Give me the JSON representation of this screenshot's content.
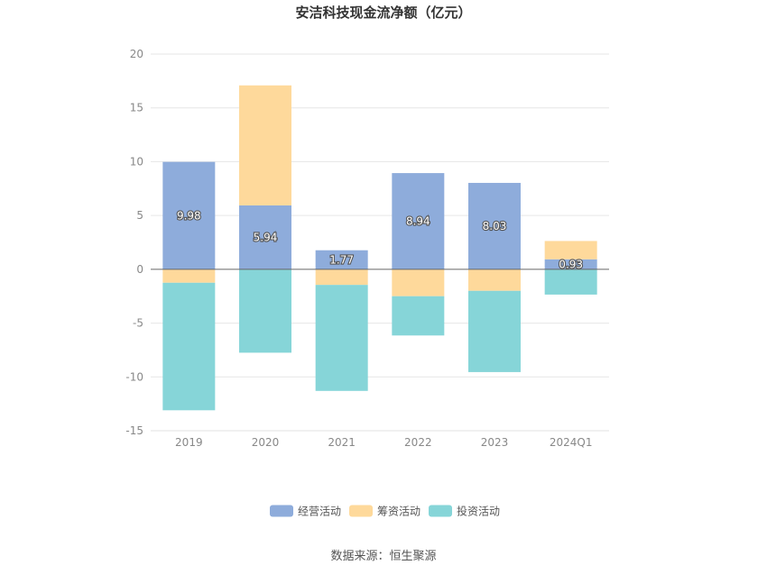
{
  "chart_data": {
    "type": "bar",
    "stacked": true,
    "title": "安洁科技现金流净额（亿元）",
    "categories": [
      "2019",
      "2020",
      "2021",
      "2022",
      "2023",
      "2024Q1"
    ],
    "series": [
      {
        "name": "经营活动",
        "color": "#8eacdb",
        "values": [
          9.98,
          5.94,
          1.77,
          8.94,
          8.03,
          0.93
        ],
        "show_labels": true
      },
      {
        "name": "筹资活动",
        "color": "#fed99b",
        "values": [
          -1.25,
          11.15,
          -1.45,
          -2.5,
          -2.0,
          1.7
        ],
        "show_labels": false
      },
      {
        "name": "投资活动",
        "color": "#86d5d8",
        "values": [
          -11.85,
          -7.75,
          -9.85,
          -3.65,
          -7.55,
          -2.35
        ],
        "show_labels": false
      }
    ],
    "ylim": [
      -15,
      20
    ],
    "yticks": [
      20,
      15,
      10,
      5,
      0,
      -5,
      -10,
      -15
    ],
    "grid": true,
    "legend_position": "bottom"
  },
  "legend": {
    "items": [
      {
        "name": "经营活动",
        "color": "#8eacdb"
      },
      {
        "name": "筹资活动",
        "color": "#fed99b"
      },
      {
        "name": "投资活动",
        "color": "#86d5d8"
      }
    ]
  },
  "source": "数据来源：恒生聚源"
}
